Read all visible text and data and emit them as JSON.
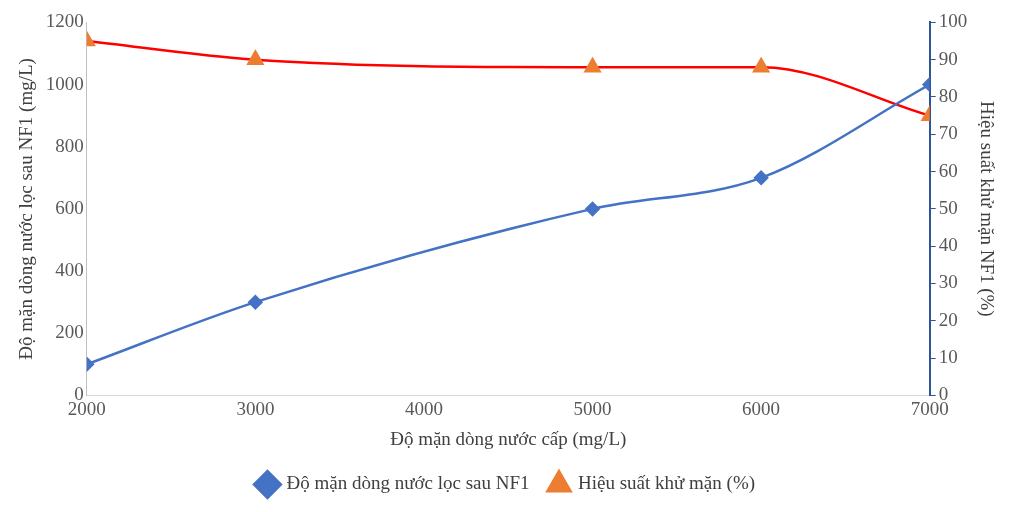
{
  "chart_data": {
    "type": "line",
    "xlabel": "Độ mặn dòng nước cấp (mg/L)",
    "ylabel": "Độ mặn dòng nước lọc sau NF1 (mg/L)",
    "y2label": "Hiệu suất khử mặn NF1 (%)",
    "x": [
      2000,
      3000,
      5000,
      6000,
      7000
    ],
    "series": [
      {
        "name": "Độ mặn dòng nước lọc sau NF1",
        "color": "#4472c4",
        "marker": "diamond",
        "values": [
          100,
          300,
          600,
          700,
          1000
        ]
      },
      {
        "name": "Hiệu suất khử mặn (%)",
        "color": "#ff0000",
        "colors": [
          "#ed7d31",
          "#ed7d31",
          "#ed7d31",
          "#ed7d31",
          "#ed7d31"
        ],
        "marker": "triangle",
        "axis": "y2",
        "values": [
          95,
          90,
          88,
          88,
          75
        ]
      }
    ],
    "xlim": [
      2000,
      7000
    ],
    "xticks": [
      2000,
      3000,
      4000,
      5000,
      6000,
      7000
    ],
    "ylim": [
      0,
      1200
    ],
    "yticks": [
      0,
      200,
      400,
      600,
      800,
      1000,
      1200
    ],
    "y2lim": [
      0,
      100
    ],
    "y2ticks": [
      0,
      10,
      20,
      30,
      40,
      50,
      60,
      70,
      80,
      90,
      100
    ],
    "grid": false,
    "legend": "bottom"
  }
}
